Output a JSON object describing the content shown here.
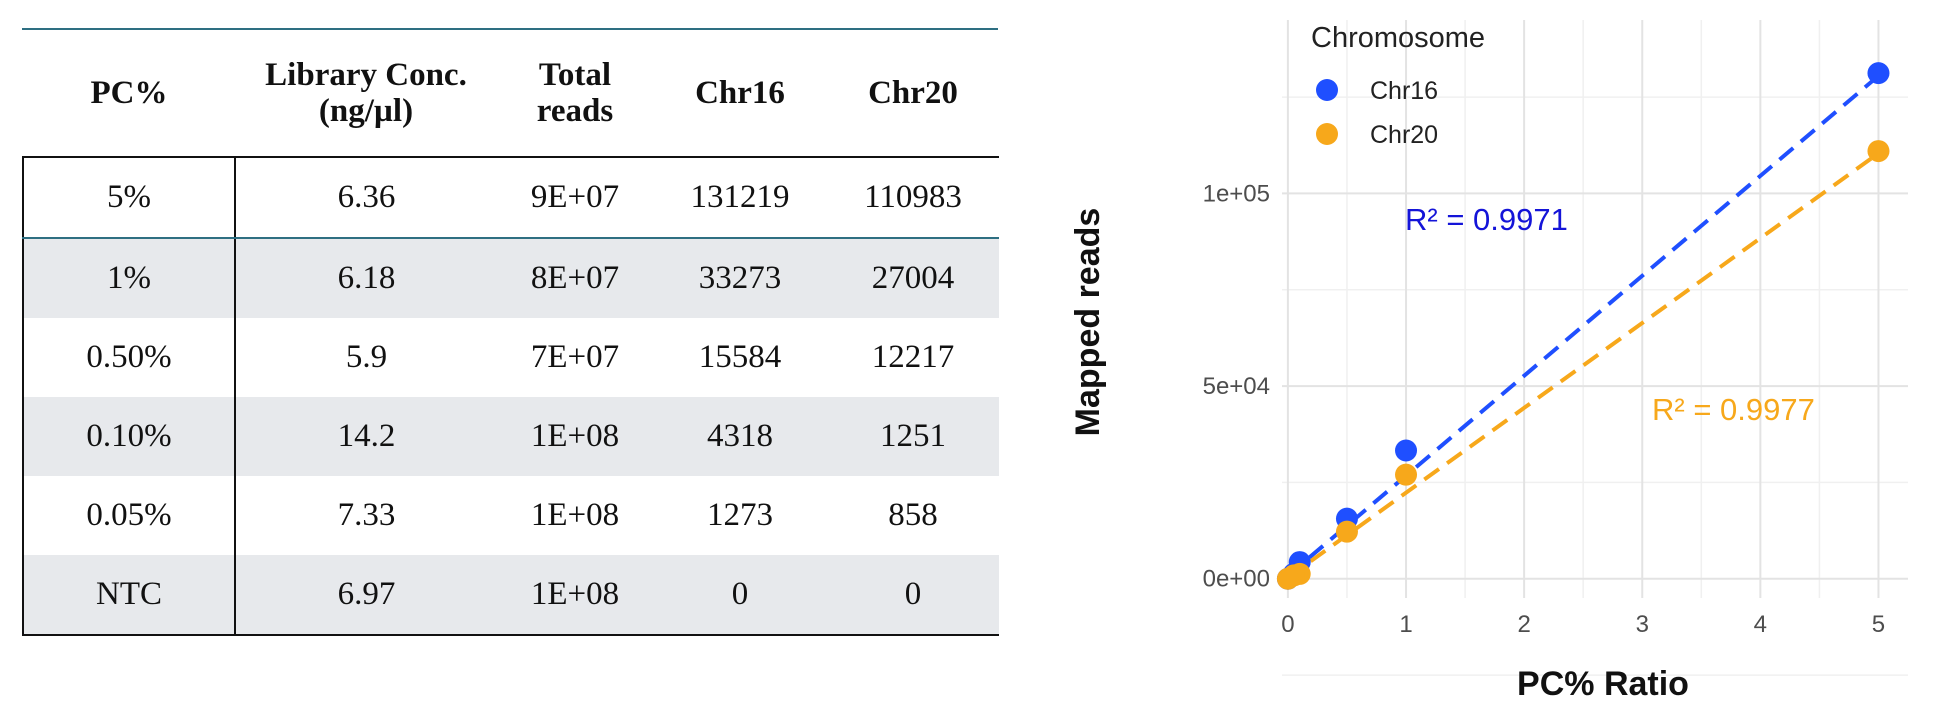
{
  "table": {
    "headers": [
      "PC%",
      "Library Conc. (ng/µl)",
      "Total reads",
      "Chr16",
      "Chr20"
    ],
    "rows": [
      [
        "5%",
        "6.36",
        "9E+07",
        "131219",
        "110983"
      ],
      [
        "1%",
        "6.18",
        "8E+07",
        "33273",
        "27004"
      ],
      [
        "0.50%",
        "5.9",
        "7E+07",
        "15584",
        "12217"
      ],
      [
        "0.10%",
        "14.2",
        "1E+08",
        "4318",
        "1251"
      ],
      [
        "0.05%",
        "7.33",
        "1E+08",
        "1273",
        "858"
      ],
      [
        "NTC",
        "6.97",
        "1E+08",
        "0",
        "0"
      ]
    ]
  },
  "chart_data": {
    "type": "scatter",
    "title": "",
    "xlabel": "PC% Ratio",
    "ylabel": "Mapped reads",
    "xlim": [
      -0.05,
      5.25
    ],
    "ylim": [
      -5000,
      145000
    ],
    "xticks": [
      0,
      1,
      2,
      3,
      4,
      5
    ],
    "xtick_labels": [
      "0",
      "1",
      "2",
      "3",
      "4",
      "5"
    ],
    "yticks": [
      0,
      50000,
      100000
    ],
    "ytick_labels": [
      "0e+00",
      "5e+04",
      "1e+05"
    ],
    "grid": true,
    "legend": {
      "title": "Chromosome",
      "position": "top-left"
    },
    "series": [
      {
        "name": "Chr16",
        "color": "#1f4fff",
        "x": [
          5,
          1,
          0.5,
          0.1,
          0.05,
          0
        ],
        "y": [
          131219,
          33273,
          15584,
          4318,
          1273,
          0
        ],
        "fit": {
          "style": "dashed",
          "x": [
            0,
            5
          ],
          "y": [
            800,
            130500
          ]
        },
        "annotation": "R² = 0.9971"
      },
      {
        "name": "Chr20",
        "color": "#f7a81b",
        "x": [
          5,
          1,
          0.5,
          0.1,
          0.05,
          0
        ],
        "y": [
          110983,
          27004,
          12217,
          1251,
          858,
          0
        ],
        "fit": {
          "style": "dashed",
          "x": [
            0,
            5
          ],
          "y": [
            300,
            110400
          ]
        },
        "annotation": "R² = 0.9977"
      }
    ]
  }
}
